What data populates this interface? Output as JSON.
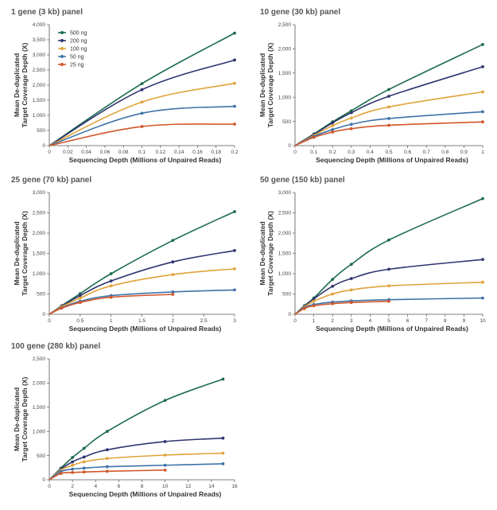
{
  "chart_data": [
    {
      "type": "line",
      "title": "1 gene (3 kb) panel",
      "xlabel": "Sequencing Depth (Millions of Unpaired Reads)",
      "ylabel": "Mean De-duplicated Target Coverage Depth (X)",
      "xlim": [
        0,
        0.2
      ],
      "ylim": [
        0,
        4000
      ],
      "xticks": [
        0,
        0.02,
        0.04,
        0.06,
        0.08,
        0.1,
        0.12,
        0.14,
        0.16,
        0.18,
        0.2
      ],
      "xtick_labels": [
        "0",
        "0.02",
        "0.04",
        "0.06",
        "0.08",
        "0.1",
        "0.12",
        "0.14",
        "0.16",
        "0.18",
        "0.2"
      ],
      "yticks": [
        0,
        500,
        1000,
        1500,
        2000,
        2500,
        3000,
        3500,
        4000
      ],
      "ytick_labels": [
        "0",
        "500",
        "1,000",
        "1,500",
        "2,000",
        "2,500",
        "3,000",
        "3,500",
        "4,000"
      ],
      "legend": "top-left",
      "series": [
        {
          "name": "500 ng",
          "color": "#1c6b4f",
          "x": [
            0,
            0.1,
            0.2
          ],
          "y": [
            0,
            2050,
            3720
          ]
        },
        {
          "name": "200 ng",
          "color": "#2f3570",
          "x": [
            0,
            0.1,
            0.2
          ],
          "y": [
            0,
            1850,
            2830
          ]
        },
        {
          "name": "100 ng",
          "color": "#e0a33a",
          "x": [
            0,
            0.1,
            0.2
          ],
          "y": [
            0,
            1440,
            2060
          ]
        },
        {
          "name": "50 ng",
          "color": "#3f73a8",
          "x": [
            0,
            0.1,
            0.2
          ],
          "y": [
            0,
            1070,
            1300
          ]
        },
        {
          "name": "25 ng",
          "color": "#d2562a",
          "x": [
            0,
            0.1,
            0.2
          ],
          "y": [
            0,
            630,
            710
          ]
        }
      ]
    },
    {
      "type": "line",
      "title": "10 gene (30 kb) panel",
      "xlabel": "Sequencing Depth (Millions of Unpaired Reads)",
      "ylabel": "Mean De-duplicated Target Coverage Depth (X)",
      "xlim": [
        0,
        1
      ],
      "ylim": [
        0,
        2500
      ],
      "xticks": [
        0,
        0.1,
        0.2,
        0.3,
        0.4,
        0.5,
        0.6,
        0.7,
        0.8,
        0.9,
        1
      ],
      "xtick_labels": [
        "0",
        "0.1",
        "0.2",
        "0.3",
        "0.4",
        "0.5",
        "0.6",
        "0.7",
        "0.8",
        "0.9",
        "1"
      ],
      "yticks": [
        0,
        500,
        1000,
        1500,
        2000,
        2500
      ],
      "ytick_labels": [
        "0",
        "500",
        "1,000",
        "1,500",
        "2,000",
        "2,500"
      ],
      "series": [
        {
          "color": "#1c6b4f",
          "x": [
            0,
            0.1,
            0.2,
            0.3,
            0.5,
            1
          ],
          "y": [
            0,
            240,
            490,
            720,
            1160,
            2090
          ]
        },
        {
          "color": "#2f3570",
          "x": [
            0,
            0.1,
            0.2,
            0.3,
            0.5,
            1
          ],
          "y": [
            0,
            230,
            470,
            680,
            1020,
            1630
          ]
        },
        {
          "color": "#e0a33a",
          "x": [
            0,
            0.1,
            0.2,
            0.3,
            0.5,
            1
          ],
          "y": [
            0,
            210,
            410,
            570,
            800,
            1110
          ]
        },
        {
          "color": "#3f73a8",
          "x": [
            0,
            0.1,
            0.2,
            0.3,
            0.5,
            1
          ],
          "y": [
            0,
            190,
            330,
            440,
            560,
            700
          ]
        },
        {
          "color": "#d2562a",
          "x": [
            0,
            0.1,
            0.2,
            0.3,
            0.5,
            1
          ],
          "y": [
            0,
            170,
            280,
            350,
            420,
            490
          ]
        }
      ]
    },
    {
      "type": "line",
      "title": "25 gene (70 kb) panel",
      "xlabel": "Sequencing Depth (Millions of Unpaired Reads)",
      "ylabel": "Mean De-duplicated Target Coverage Depth (X)",
      "xlim": [
        0,
        3
      ],
      "ylim": [
        0,
        3000
      ],
      "xticks": [
        0,
        0.5,
        1,
        1.5,
        2,
        2.5,
        3
      ],
      "xtick_labels": [
        "0",
        "0.5",
        "1",
        "1.5",
        "2",
        "2.5",
        "3"
      ],
      "yticks": [
        0,
        500,
        1000,
        1500,
        2000,
        2500,
        3000
      ],
      "ytick_labels": [
        "0",
        "500",
        "1,000",
        "1,500",
        "2,000",
        "2,500",
        "3,000"
      ],
      "series": [
        {
          "color": "#1c6b4f",
          "x": [
            0,
            0.2,
            0.5,
            1,
            2,
            3
          ],
          "y": [
            0,
            210,
            510,
            1000,
            1820,
            2530
          ]
        },
        {
          "color": "#2f3570",
          "x": [
            0,
            0.2,
            0.5,
            1,
            2,
            3
          ],
          "y": [
            0,
            200,
            460,
            820,
            1290,
            1570
          ]
        },
        {
          "color": "#e0a33a",
          "x": [
            0,
            0.2,
            0.5,
            1,
            2,
            3
          ],
          "y": [
            0,
            185,
            400,
            700,
            980,
            1120
          ]
        },
        {
          "color": "#3f73a8",
          "x": [
            0,
            0.2,
            0.5,
            1,
            2,
            3
          ],
          "y": [
            0,
            160,
            320,
            460,
            550,
            600
          ]
        },
        {
          "color": "#d2562a",
          "x": [
            0,
            0.2,
            0.5,
            1,
            2
          ],
          "y": [
            0,
            150,
            290,
            420,
            490
          ]
        }
      ]
    },
    {
      "type": "line",
      "title": "50 gene (150 kb) panel",
      "xlabel": "Sequencing Depth (Millions of Unpaired Reads)",
      "ylabel": "Mean De-duplicated Target Coverage Depth (X)",
      "xlim": [
        0,
        10
      ],
      "ylim": [
        0,
        3000
      ],
      "xticks": [
        0,
        1,
        2,
        3,
        4,
        5,
        6,
        7,
        8,
        9,
        10
      ],
      "xtick_labels": [
        "0",
        "1",
        "2",
        "3",
        "4",
        "5",
        "6",
        "7",
        "8",
        "9",
        "10"
      ],
      "yticks": [
        0,
        500,
        1000,
        1500,
        2000,
        2500,
        3000
      ],
      "ytick_labels": [
        "0",
        "500",
        "1,000",
        "1,500",
        "2,000",
        "2,500",
        "3,000"
      ],
      "series": [
        {
          "color": "#1c6b4f",
          "x": [
            0,
            0.5,
            1,
            2,
            3,
            5,
            10
          ],
          "y": [
            0,
            210,
            400,
            860,
            1230,
            1830,
            2850
          ]
        },
        {
          "color": "#2f3570",
          "x": [
            0,
            0.5,
            1,
            2,
            3,
            5,
            10
          ],
          "y": [
            0,
            200,
            380,
            690,
            880,
            1110,
            1350
          ]
        },
        {
          "color": "#e0a33a",
          "x": [
            0,
            0.5,
            1,
            2,
            3,
            5,
            10
          ],
          "y": [
            0,
            180,
            320,
            500,
            600,
            700,
            790
          ]
        },
        {
          "color": "#3f73a8",
          "x": [
            0,
            0.5,
            1,
            2,
            3,
            5,
            10
          ],
          "y": [
            0,
            160,
            240,
            300,
            330,
            360,
            400
          ]
        },
        {
          "color": "#d2562a",
          "x": [
            0,
            0.5,
            1,
            2,
            3,
            5
          ],
          "y": [
            0,
            140,
            210,
            260,
            290,
            320
          ]
        }
      ]
    },
    {
      "type": "line",
      "title": "100 gene (280 kb) panel",
      "xlabel": "Sequencing Depth (Millions of Unpaired Reads)",
      "ylabel": "Mean De-duplicated Target Coverage Depth (X)",
      "xlim": [
        0,
        16
      ],
      "ylim": [
        0,
        2500
      ],
      "xticks": [
        0,
        2,
        4,
        6,
        8,
        10,
        12,
        14,
        16
      ],
      "xtick_labels": [
        "0",
        "2",
        "4",
        "6",
        "8",
        "10",
        "12",
        "14",
        "16"
      ],
      "yticks": [
        0,
        500,
        1000,
        1500,
        2000,
        2500
      ],
      "ytick_labels": [
        "0",
        "500",
        "1,000",
        "1,500",
        "2,000",
        "2,500"
      ],
      "series": [
        {
          "color": "#1c6b4f",
          "x": [
            0,
            1,
            2,
            3,
            5,
            10,
            15
          ],
          "y": [
            0,
            240,
            460,
            650,
            1000,
            1640,
            2080
          ]
        },
        {
          "color": "#2f3570",
          "x": [
            0,
            1,
            2,
            3,
            5,
            10,
            15
          ],
          "y": [
            0,
            220,
            370,
            470,
            620,
            790,
            860
          ]
        },
        {
          "color": "#e0a33a",
          "x": [
            0,
            1,
            2,
            3,
            5,
            10,
            15
          ],
          "y": [
            0,
            200,
            300,
            370,
            440,
            510,
            550
          ]
        },
        {
          "color": "#3f73a8",
          "x": [
            0,
            1,
            2,
            3,
            5,
            10,
            15
          ],
          "y": [
            0,
            170,
            220,
            240,
            270,
            300,
            330
          ]
        },
        {
          "color": "#d2562a",
          "x": [
            0,
            1,
            2,
            3,
            5,
            10
          ],
          "y": [
            0,
            130,
            150,
            160,
            175,
            200
          ]
        }
      ]
    }
  ]
}
